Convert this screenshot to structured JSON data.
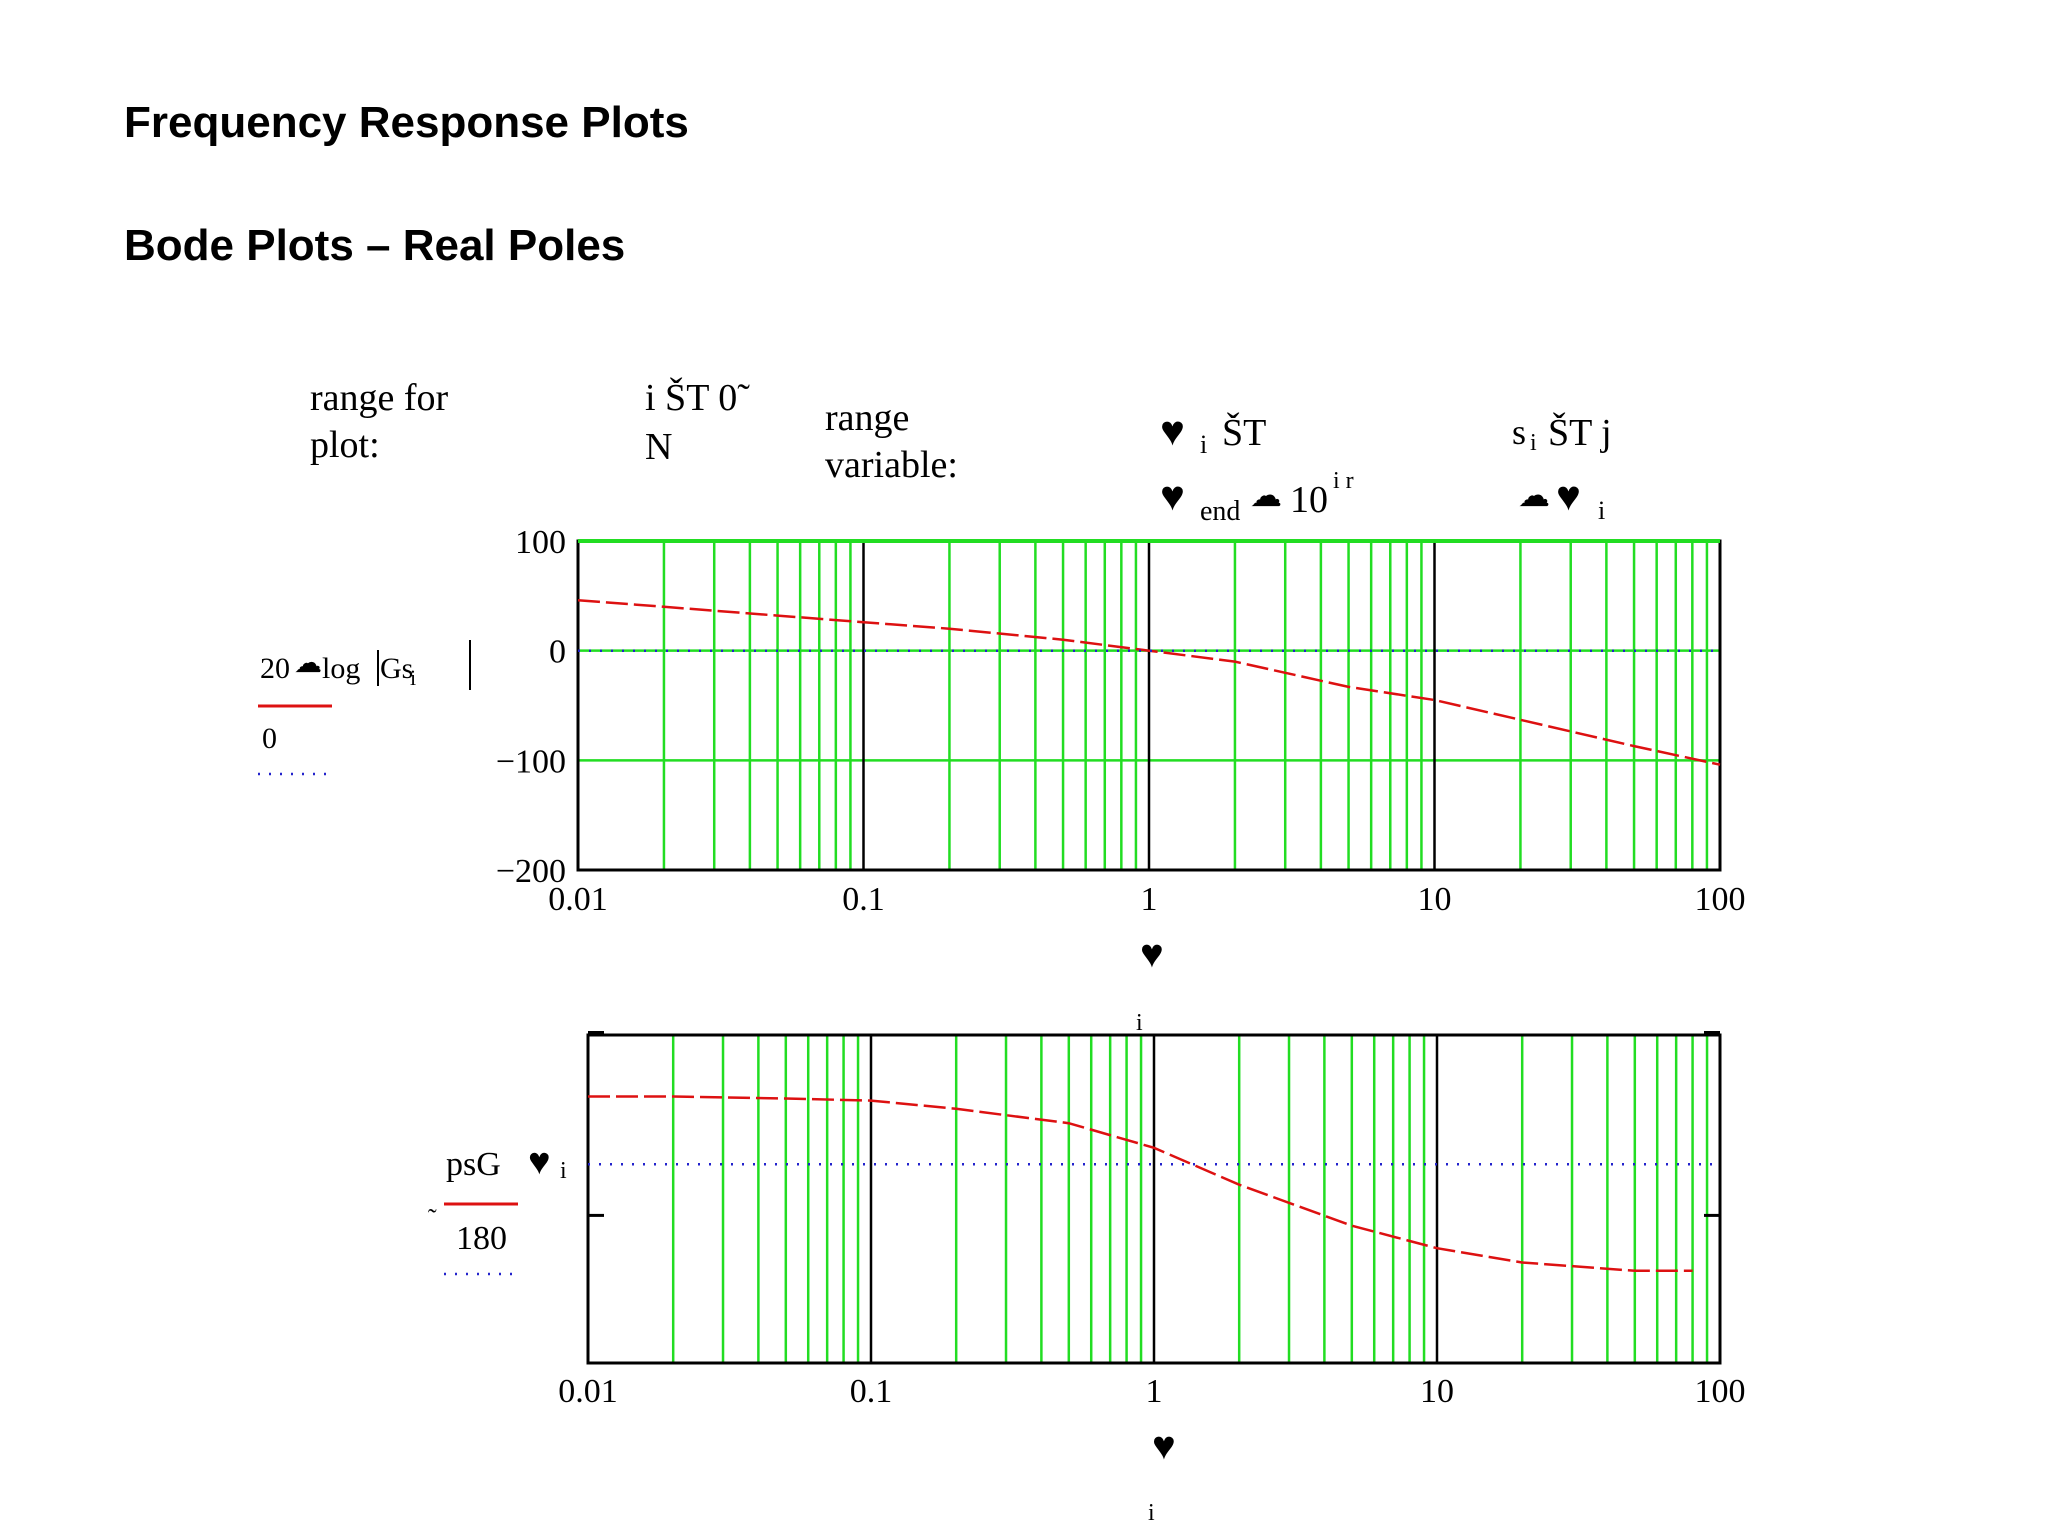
{
  "page": {
    "title": "Frequency Response Plots",
    "subtitle": "Bode Plots – Real Poles"
  },
  "definitions": {
    "range_label_1": "range for",
    "range_label_2": "plot:",
    "i_def_1": "i ŠT  0̃",
    "i_def_2": "N",
    "range_var_1": "range",
    "range_var_2": "variable:",
    "omega_i_def": "ŠT",
    "omega_end_sub": "end",
    "omega_end_def": "10",
    "omega_end_exp": "i r",
    "s_def": "ŠT  j",
    "s_def_2": "i"
  },
  "symbols": {
    "heart": "♥",
    "times": "☁",
    "sub_i": "i",
    "s_sub": "s",
    "tilde": "˜"
  },
  "plot1": {
    "ylabel_expr_coef": "20",
    "ylabel_expr_fn": "log",
    "ylabel_expr_arg": "Gs",
    "ylabel_expr_sub": "i",
    "ylabel_ref": "0",
    "xlabel": "♥",
    "xlabel_sub": "i"
  },
  "plot2": {
    "ylabel_expr": "psG",
    "ylabel_ref": "180",
    "ylabel_ref_sign": "˜",
    "xlabel": "♥",
    "xlabel_sub": "i"
  },
  "colors": {
    "curve": "#dd1111",
    "reference": "#2222cc",
    "grid": "#22dd22",
    "decade": "#000000",
    "axes": "#000000"
  },
  "chart_data": [
    {
      "type": "line",
      "xscale": "log",
      "xlim": [
        0.01,
        100
      ],
      "ylim": [
        -200,
        100
      ],
      "x_ticks": [
        "0.01",
        "0.1",
        "1",
        "10",
        "100"
      ],
      "y_ticks": [
        "100",
        "0",
        "−100",
        "−200"
      ],
      "y_tick_values": [
        100,
        0,
        -100,
        -200
      ],
      "grid": true,
      "series": [
        {
          "style": "dashed",
          "color": "#dd1111",
          "x": [
            0.01,
            0.02,
            0.05,
            0.1,
            0.2,
            0.5,
            1,
            2,
            5,
            10,
            20,
            50,
            100
          ],
          "y": [
            46,
            40,
            32,
            26,
            20,
            10,
            0,
            -10,
            -33,
            -45,
            -63,
            -87,
            -104
          ]
        },
        {
          "style": "dotted",
          "color": "#2222cc",
          "x": [
            0.01,
            100
          ],
          "y": [
            0,
            0
          ]
        }
      ]
    },
    {
      "type": "line",
      "xscale": "log",
      "xlim": [
        0.01,
        100
      ],
      "ylim": [
        -1.3,
        0.3
      ],
      "x_ticks": [
        "0.01",
        "0.1",
        "1",
        "10",
        "100"
      ],
      "grid": true,
      "series": [
        {
          "style": "dashed",
          "color": "#dd1111",
          "x": [
            0.01,
            0.02,
            0.05,
            0.1,
            0.2,
            0.5,
            1,
            2,
            5,
            10,
            20,
            50,
            80
          ],
          "y": [
            0.0,
            0.0,
            -0.01,
            -0.02,
            -0.06,
            -0.13,
            -0.25,
            -0.43,
            -0.63,
            -0.74,
            -0.81,
            -0.85,
            -0.85
          ]
        },
        {
          "style": "dotted",
          "color": "#2222cc",
          "x": [
            0.01,
            100
          ],
          "y": [
            -0.33,
            -0.33
          ]
        }
      ]
    }
  ]
}
